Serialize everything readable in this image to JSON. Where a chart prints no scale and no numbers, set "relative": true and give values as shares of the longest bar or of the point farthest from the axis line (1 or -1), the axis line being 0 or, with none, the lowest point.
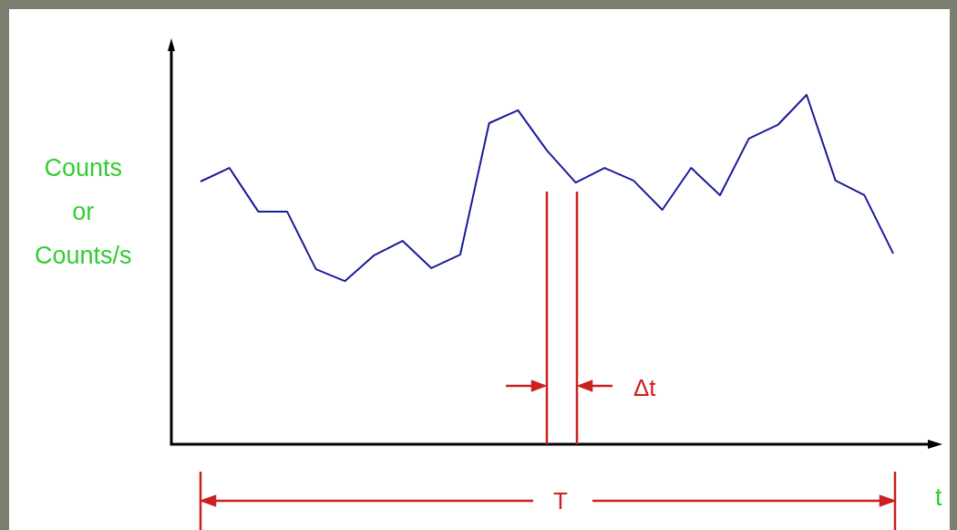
{
  "chart_data": {
    "type": "line",
    "relative": true,
    "xlabel": "t",
    "ylabel": "Counts or Counts/s",
    "categories": [
      null,
      null,
      null,
      null,
      null,
      null,
      null,
      null,
      null,
      null,
      null,
      null,
      null,
      null,
      null,
      null,
      null,
      null,
      null,
      null,
      null,
      null,
      null,
      null,
      null
    ],
    "series": [
      {
        "color": "#1a1a9a",
        "values": [
          0.752,
          0.791,
          0.666,
          0.666,
          0.501,
          0.467,
          0.54,
          0.582,
          0.504,
          0.543,
          0.919,
          0.956,
          0.841,
          0.749,
          0.791,
          0.755,
          0.671,
          0.791,
          0.713,
          0.875,
          0.914,
          1,
          0.755,
          0.713,
          0.546
        ]
      }
    ],
    "annotations": [
      "Δt",
      "T"
    ],
    "legend": false,
    "marker": "none",
    "line_style": "solid"
  }
}
